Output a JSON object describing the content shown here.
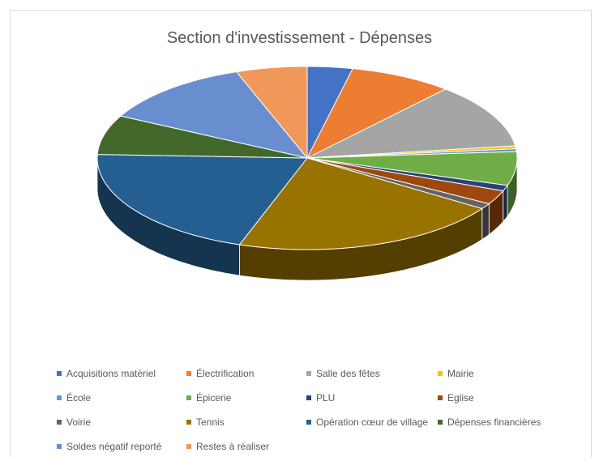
{
  "chart_data": {
    "type": "pie",
    "style": "3d",
    "title": "Section d'investissement - Dépenses",
    "legend_position": "bottom",
    "series": [
      {
        "name": "Acquisitions matériel",
        "value": 3.5,
        "color": "#4472C4"
      },
      {
        "name": "Électrification",
        "value": 8.0,
        "color": "#ED7D31"
      },
      {
        "name": "Salle des fêtes",
        "value": 11.5,
        "color": "#A5A5A5"
      },
      {
        "name": "Mairie",
        "value": 0.5,
        "color": "#FFC000"
      },
      {
        "name": "École",
        "value": 0.5,
        "color": "#5B9BD5"
      },
      {
        "name": "Épicerie",
        "value": 6.0,
        "color": "#70AD47"
      },
      {
        "name": "PLU",
        "value": 1.0,
        "color": "#264478"
      },
      {
        "name": "Eglise",
        "value": 2.5,
        "color": "#9E480E"
      },
      {
        "name": "Voirie",
        "value": 1.0,
        "color": "#636363"
      },
      {
        "name": "Tennis",
        "value": 21.0,
        "color": "#997300"
      },
      {
        "name": "Opération cœur de village",
        "value": 20.5,
        "color": "#255E91"
      },
      {
        "name": "Dépenses financières",
        "value": 7.0,
        "color": "#43682B"
      },
      {
        "name": "Soldes négatif reporté",
        "value": 12.0,
        "color": "#698ED0"
      },
      {
        "name": "Restes à réaliser",
        "value": 5.5,
        "color": "#F1975A"
      }
    ]
  }
}
